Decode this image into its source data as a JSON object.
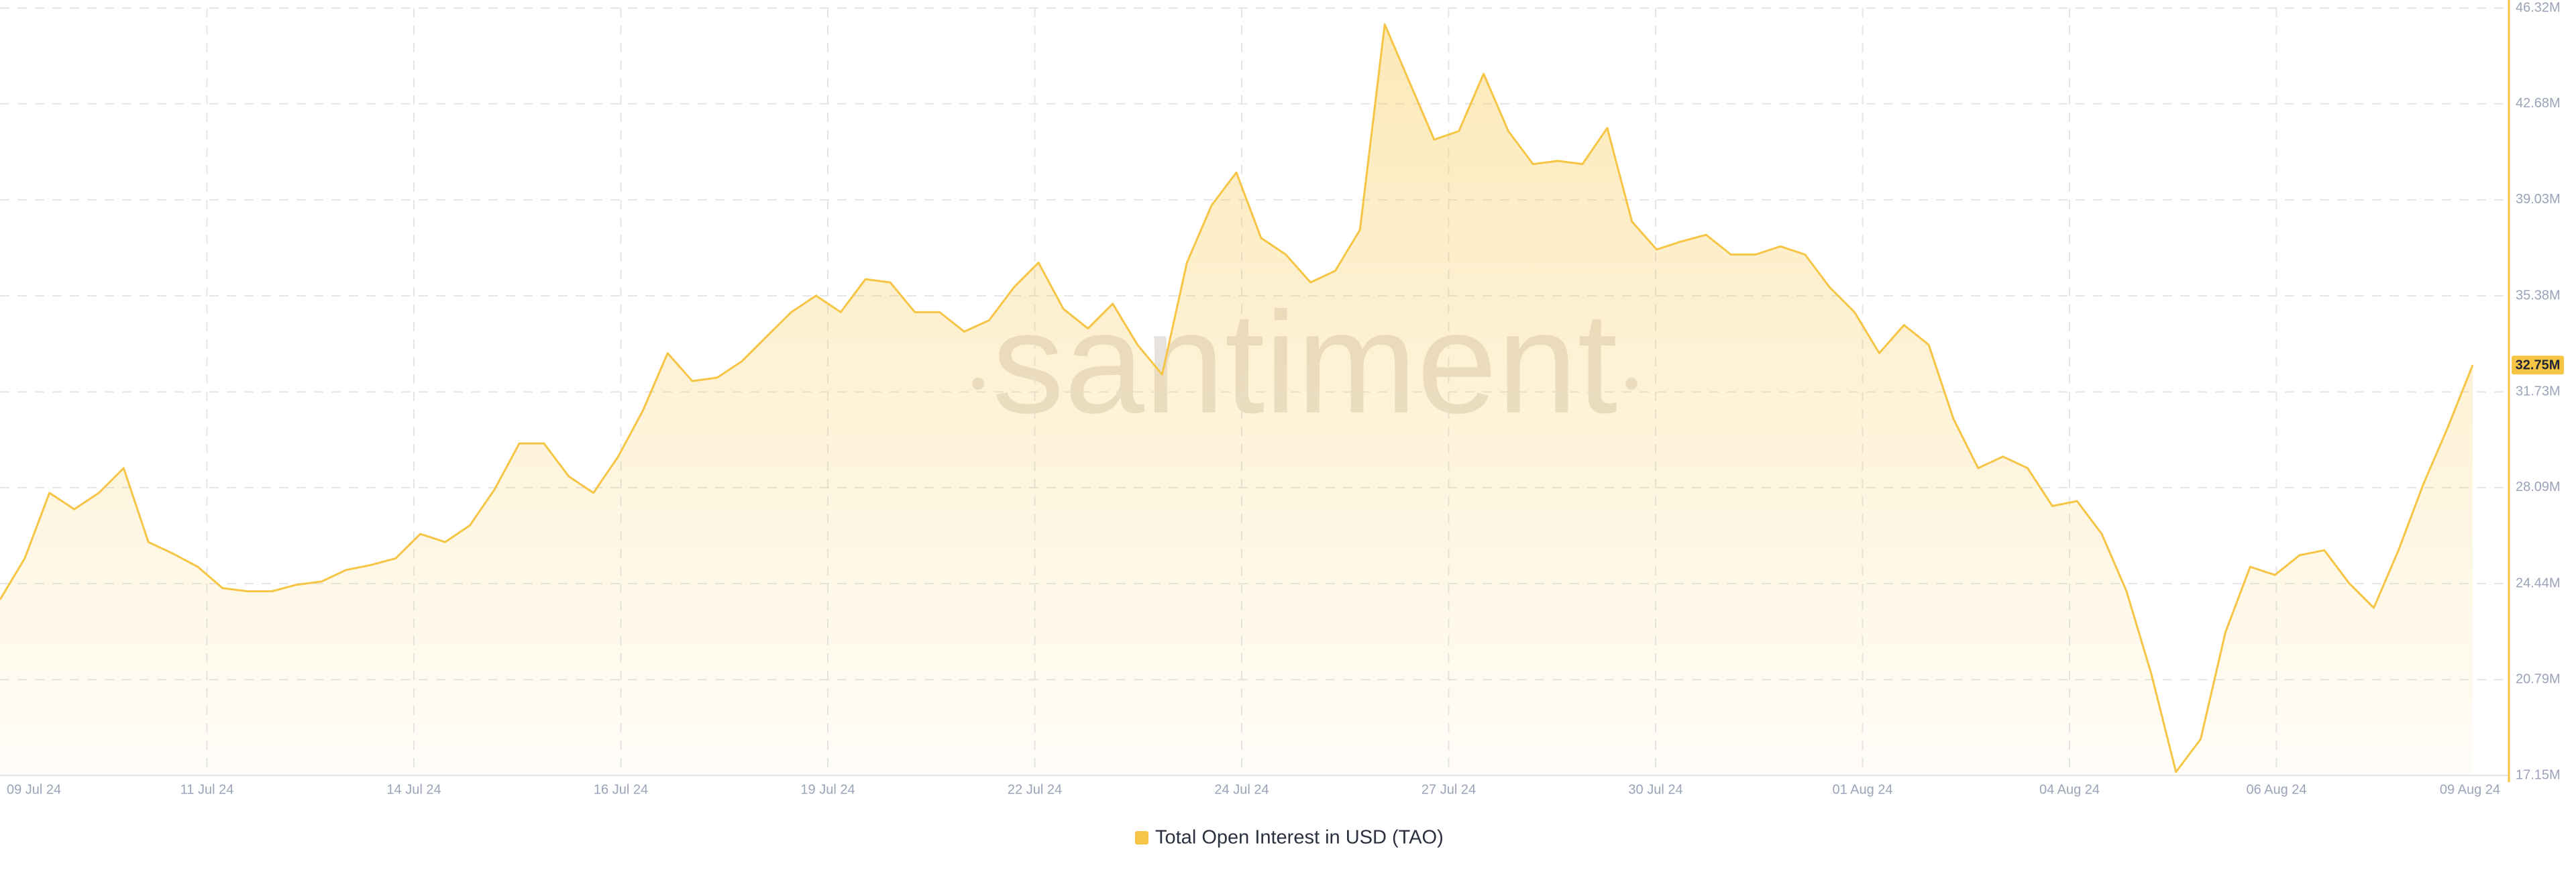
{
  "chart_data": {
    "type": "area",
    "watermark": "santiment",
    "xtick_labels": [
      "09 Jul 24",
      "11 Jul 24",
      "14 Jul 24",
      "16 Jul 24",
      "19 Jul 24",
      "22 Jul 24",
      "24 Jul 24",
      "27 Jul 24",
      "30 Jul 24",
      "01 Aug 24",
      "04 Aug 24",
      "06 Aug 24",
      "09 Aug 24"
    ],
    "series": [
      {
        "name": "Total Open Interest in USD (TAO)",
        "color": "#f7c545",
        "values": [
          23.83,
          25.4,
          27.89,
          27.27,
          27.89,
          28.83,
          26.02,
          25.58,
          25.08,
          24.27,
          24.15,
          24.15,
          24.4,
          24.52,
          24.96,
          25.15,
          25.4,
          26.33,
          26.02,
          26.65,
          28.02,
          29.77,
          29.77,
          28.52,
          27.89,
          29.27,
          31.02,
          33.2,
          32.14,
          32.27,
          32.89,
          33.83,
          34.76,
          35.39,
          34.76,
          36.01,
          35.89,
          34.76,
          34.76,
          34.02,
          34.45,
          35.7,
          36.64,
          34.89,
          34.14,
          35.08,
          33.52,
          32.39,
          36.64,
          38.82,
          40.07,
          37.58,
          36.95,
          35.89,
          36.33,
          37.89,
          45.7,
          43.51,
          41.32,
          41.64,
          43.82,
          41.64,
          40.39,
          40.51,
          40.39,
          41.76,
          38.2,
          37.14,
          37.45,
          37.7,
          36.95,
          36.95,
          37.26,
          36.95,
          35.7,
          34.76,
          33.2,
          34.27,
          33.52,
          30.71,
          28.83,
          29.27,
          28.83,
          27.39,
          27.58,
          26.33,
          24.15,
          21.02,
          17.28,
          18.53,
          22.59,
          25.08,
          24.77,
          25.52,
          25.71,
          24.46,
          23.52,
          25.71,
          28.21,
          30.39,
          32.75
        ]
      }
    ],
    "current_value": {
      "value": 32.75,
      "label": "32.75M"
    },
    "ylim": [
      17.15,
      46.32
    ],
    "yticks": [
      {
        "value": 17.15,
        "label": "17.15M"
      },
      {
        "value": 20.79,
        "label": "20.79M"
      },
      {
        "value": 24.44,
        "label": "24.44M"
      },
      {
        "value": 28.09,
        "label": "28.09M"
      },
      {
        "value": 31.73,
        "label": "31.73M"
      },
      {
        "value": 35.38,
        "label": "35.38M"
      },
      {
        "value": 39.03,
        "label": "39.03M"
      },
      {
        "value": 42.68,
        "label": "42.68M"
      },
      {
        "value": 46.32,
        "label": "46.32M"
      }
    ],
    "grid": true
  }
}
